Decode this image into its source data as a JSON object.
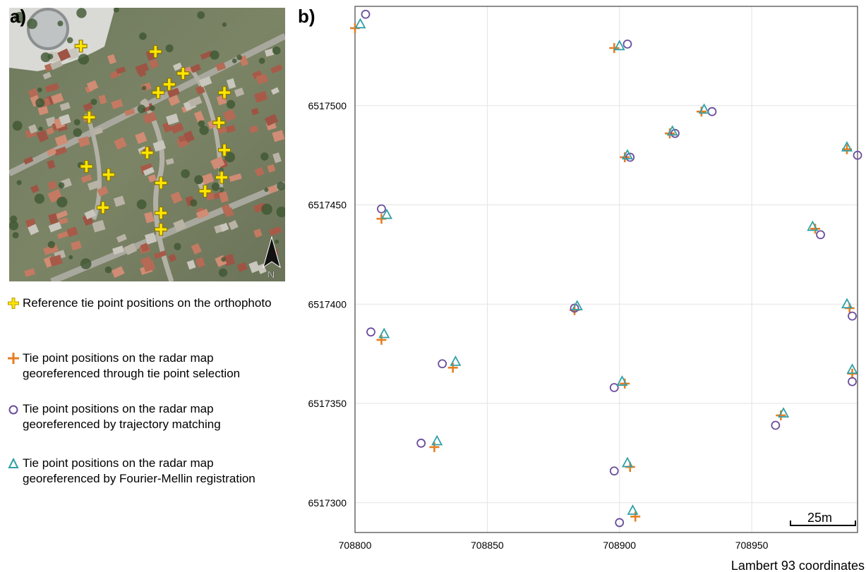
{
  "panels": {
    "a_label": "a)",
    "b_label": "b)"
  },
  "north_label": "N",
  "legend": [
    {
      "text": "Reference tie point positions on the orthophoto",
      "color": "#ffe600"
    },
    {
      "text": "Tie point positions on the radar map georeferenced through tie point selection",
      "color": "#e67e22"
    },
    {
      "text": "Tie point positions on the radar map georeferenced by trajectory matching",
      "color": "#6a4e9c"
    },
    {
      "text": "Tie point positions on the radar map georeferenced by Fourier-Mellin registration",
      "color": "#31a0a8"
    }
  ],
  "scale_bar_label": "25m",
  "chart_data": {
    "type": "scatter",
    "xlabel": "Lambert 93 coordinates",
    "xlim": [
      708800,
      708990
    ],
    "ylim": [
      6517285,
      6517550
    ],
    "xticks": [
      708800,
      708850,
      708900,
      708950
    ],
    "yticks": [
      6517300,
      6517350,
      6517400,
      6517450,
      6517500
    ],
    "grid": true,
    "series": [
      {
        "name": "Tie point positions on the radar map georeferenced through tie point selection",
        "marker": "plus",
        "color": "#e67e22",
        "points": [
          [
            708800,
            6517539
          ],
          [
            708898,
            6517529
          ],
          [
            708931,
            6517497
          ],
          [
            708919,
            6517486
          ],
          [
            708902,
            6517474
          ],
          [
            708986,
            6517478
          ],
          [
            708810,
            6517443
          ],
          [
            708974,
            6517438
          ],
          [
            708883,
            6517397
          ],
          [
            708987,
            6517398
          ],
          [
            708810,
            6517382
          ],
          [
            708837,
            6517368
          ],
          [
            708988,
            6517365
          ],
          [
            708902,
            6517360
          ],
          [
            708961,
            6517344
          ],
          [
            708830,
            6517328
          ],
          [
            708904,
            6517318
          ],
          [
            708906,
            6517293
          ]
        ]
      },
      {
        "name": "Tie point positions on the radar map georeferenced by trajectory matching",
        "marker": "circle",
        "color": "#6a4e9c",
        "points": [
          [
            708804,
            6517546
          ],
          [
            708903,
            6517531
          ],
          [
            708935,
            6517497
          ],
          [
            708921,
            6517486
          ],
          [
            708904,
            6517474
          ],
          [
            708990,
            6517475
          ],
          [
            708810,
            6517448
          ],
          [
            708976,
            6517435
          ],
          [
            708883,
            6517398
          ],
          [
            708988,
            6517394
          ],
          [
            708806,
            6517386
          ],
          [
            708833,
            6517370
          ],
          [
            708988,
            6517361
          ],
          [
            708898,
            6517358
          ],
          [
            708959,
            6517339
          ],
          [
            708825,
            6517330
          ],
          [
            708898,
            6517316
          ],
          [
            708900,
            6517290
          ]
        ]
      },
      {
        "name": "Tie point positions on the radar map georeferenced by Fourier-Mellin registration",
        "marker": "triangle",
        "color": "#31a0a8",
        "points": [
          [
            708802,
            6517541
          ],
          [
            708900,
            6517530
          ],
          [
            708932,
            6517498
          ],
          [
            708920,
            6517487
          ],
          [
            708903,
            6517475
          ],
          [
            708986,
            6517479
          ],
          [
            708812,
            6517445
          ],
          [
            708973,
            6517439
          ],
          [
            708884,
            6517399
          ],
          [
            708986,
            6517400
          ],
          [
            708811,
            6517385
          ],
          [
            708838,
            6517371
          ],
          [
            708988,
            6517367
          ],
          [
            708901,
            6517361
          ],
          [
            708962,
            6517345
          ],
          [
            708831,
            6517331
          ],
          [
            708903,
            6517320
          ],
          [
            708905,
            6517296
          ]
        ]
      }
    ]
  },
  "orthophoto": {
    "reference_points": [
      [
        0.26,
        0.14
      ],
      [
        0.53,
        0.16
      ],
      [
        0.63,
        0.24
      ],
      [
        0.58,
        0.28
      ],
      [
        0.54,
        0.31
      ],
      [
        0.78,
        0.31
      ],
      [
        0.29,
        0.4
      ],
      [
        0.76,
        0.42
      ],
      [
        0.5,
        0.53
      ],
      [
        0.78,
        0.52
      ],
      [
        0.28,
        0.58
      ],
      [
        0.36,
        0.61
      ],
      [
        0.55,
        0.64
      ],
      [
        0.77,
        0.62
      ],
      [
        0.71,
        0.67
      ],
      [
        0.34,
        0.73
      ],
      [
        0.55,
        0.75
      ],
      [
        0.55,
        0.81
      ]
    ]
  }
}
